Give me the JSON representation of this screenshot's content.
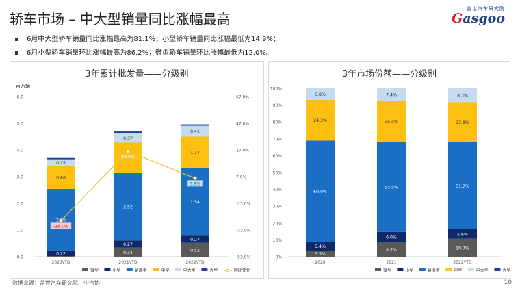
{
  "header": {
    "title": "轿车市场 – 中大型销量同比涨幅最高",
    "logo_cn": "盖世汽车研究院",
    "logo_en_g": "G",
    "logo_en_rest": "asgoo"
  },
  "bullets": [
    "6月中大型轿车销量同比涨幅最高为81.1%；小型轿车销量同比涨幅最低为14.9%；",
    "6月小型轿车销量环比涨幅最高为86.2%；微型轿车销量环比涨幅最低为12.0%。"
  ],
  "footer": {
    "source": "数据来源：盖世汽车研究院、中汽协",
    "page": "10"
  },
  "colors": {
    "micro": "#595959",
    "small": "#0f2a6b",
    "compact": "#1a6fc4",
    "medium": "#fdc010",
    "midlarge": "#c5dbef",
    "large": "#203f99",
    "line": "#f2c12e"
  },
  "chart_data": [
    {
      "type": "bar",
      "title": "3年累计批发量——分级别",
      "ylabel": "百万辆",
      "ylim": [
        0,
        6
      ],
      "yticks": [
        "0.0",
        "1.0",
        "2.0",
        "3.0",
        "4.0",
        "5.0",
        "6.0"
      ],
      "y2ticks": [
        "-53.0%",
        "-33.0%",
        "-13.0%",
        "7.0%",
        "27.0%",
        "47.0%",
        "67.0%"
      ],
      "y2lim": [
        -53,
        67
      ],
      "categories": [
        "2020YTD",
        "2021YTD",
        "2022YTD"
      ],
      "series": [
        {
          "name": "微型",
          "values": [
            0.02,
            0.34,
            0.52
          ]
        },
        {
          "name": "小型",
          "values": [
            0.22,
            0.27,
            0.27
          ]
        },
        {
          "name": "紧凑型",
          "values": [
            2.3,
            2.52,
            2.54
          ]
        },
        {
          "name": "中型",
          "values": [
            0.86,
            1.14,
            1.17
          ]
        },
        {
          "name": "中大型",
          "values": [
            0.25,
            0.37,
            0.41
          ]
        },
        {
          "name": "大型",
          "values": [
            0.05,
            0.05,
            0.05
          ]
        }
      ],
      "labels": [
        [
          null,
          "0.22",
          "2.30",
          "0.86",
          "0.25",
          null
        ],
        [
          "0.34",
          "0.27",
          "2.52",
          "1.14",
          "0.37",
          null
        ],
        [
          "0.52",
          "0.27",
          "2.54",
          "1.17",
          "0.41",
          null
        ]
      ],
      "line": {
        "name": "同比变化",
        "values": [
          -26.0,
          26.0,
          5.8
        ],
        "labels": [
          "-26.0%",
          "26.0%",
          "5.8%"
        ]
      },
      "legend": [
        "微型",
        "小型",
        "紧凑型",
        "中型",
        "中大型",
        "大型",
        "同比变化"
      ]
    },
    {
      "type": "bar",
      "title": "3年市场份额——分级别",
      "ylim": [
        0,
        100
      ],
      "yticks": [
        "0%",
        "10%",
        "20%",
        "30%",
        "40%",
        "50%",
        "60%",
        "70%",
        "80%",
        "90%",
        "100%"
      ],
      "categories": [
        "2020",
        "2021",
        "2022YTD"
      ],
      "series": [
        {
          "name": "微型",
          "values": [
            3.5,
            8.7,
            10.7
          ]
        },
        {
          "name": "小型",
          "values": [
            5.4,
            6.0,
            5.6
          ]
        },
        {
          "name": "紧凑型",
          "values": [
            60.0,
            53.5,
            51.7
          ]
        },
        {
          "name": "中型",
          "values": [
            24.3,
            24.4,
            23.8
          ]
        },
        {
          "name": "中大型",
          "values": [
            6.8,
            7.4,
            8.3
          ]
        },
        {
          "name": "大型",
          "values": [
            0,
            0,
            0
          ]
        }
      ],
      "labels": [
        [
          "3.5%",
          "5.4%",
          "60.0%",
          "24.3%",
          "6.8%",
          null
        ],
        [
          "8.7%",
          "6.0%",
          "53.5%",
          "24.4%",
          "7.4%",
          null
        ],
        [
          "10.7%",
          "5.6%",
          "51.7%",
          "23.8%",
          "8.3%",
          null
        ]
      ],
      "legend": [
        "微型",
        "小型",
        "紧凑型",
        "中型",
        "中大型",
        "大型"
      ]
    }
  ]
}
